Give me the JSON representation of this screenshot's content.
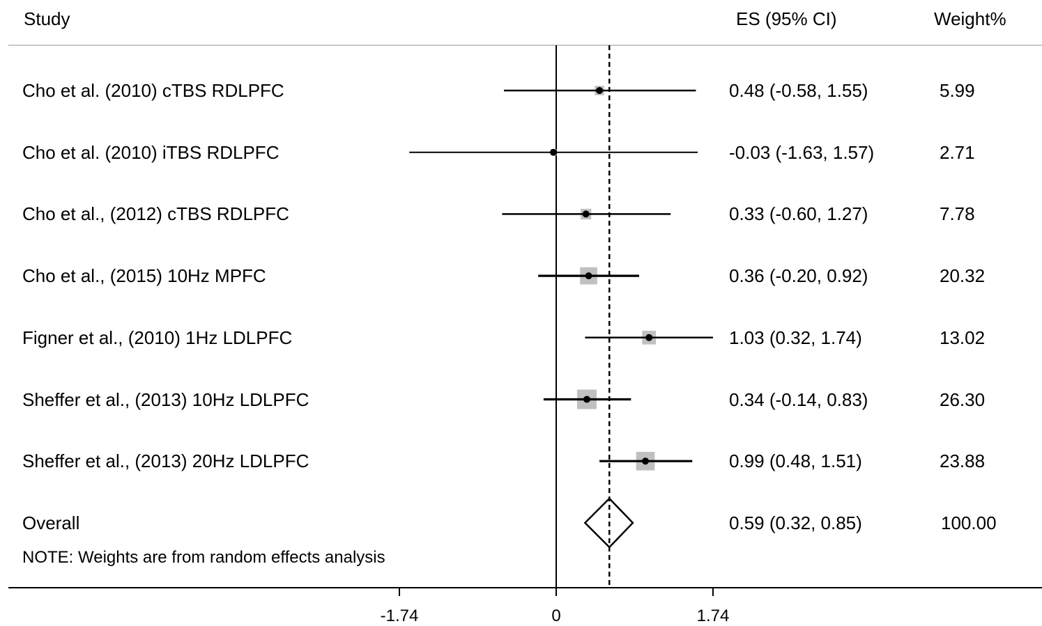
{
  "chart_data": {
    "type": "forest",
    "columns": {
      "study": "Study",
      "es": "ES (95% CI)",
      "weight": "Weight%"
    },
    "studies": [
      {
        "label": "Cho et al. (2010) cTBS RDLPFC",
        "es": 0.48,
        "lo": -0.58,
        "hi": 1.55,
        "es_text": "0.48 (-0.58, 1.55)",
        "weight": 5.99,
        "weight_text": "5.99"
      },
      {
        "label": "Cho et al. (2010) iTBS RDLPFC",
        "es": -0.03,
        "lo": -1.63,
        "hi": 1.57,
        "es_text": "-0.03 (-1.63, 1.57)",
        "weight": 2.71,
        "weight_text": "2.71"
      },
      {
        "label": "Cho et al., (2012) cTBS RDLPFC",
        "es": 0.33,
        "lo": -0.6,
        "hi": 1.27,
        "es_text": "0.33 (-0.60, 1.27)",
        "weight": 7.78,
        "weight_text": "7.78"
      },
      {
        "label": "Cho et al., (2015) 10Hz MPFC",
        "es": 0.36,
        "lo": -0.2,
        "hi": 0.92,
        "es_text": "0.36 (-0.20, 0.92)",
        "weight": 20.32,
        "weight_text": "20.32"
      },
      {
        "label": "Figner et al., (2010) 1Hz LDLPFC",
        "es": 1.03,
        "lo": 0.32,
        "hi": 1.74,
        "es_text": "1.03 (0.32, 1.74)",
        "weight": 13.02,
        "weight_text": "13.02"
      },
      {
        "label": "Sheffer et al., (2013) 10Hz LDLPFC",
        "es": 0.34,
        "lo": -0.14,
        "hi": 0.83,
        "es_text": "0.34 (-0.14, 0.83)",
        "weight": 26.3,
        "weight_text": "26.30"
      },
      {
        "label": "Sheffer et al., (2013) 20Hz LDLPFC",
        "es": 0.99,
        "lo": 0.48,
        "hi": 1.51,
        "es_text": "0.99 (0.48, 1.51)",
        "weight": 23.88,
        "weight_text": "23.88"
      }
    ],
    "overall": {
      "label": "Overall",
      "es": 0.59,
      "lo": 0.32,
      "hi": 0.85,
      "es_text": "0.59 (0.32, 0.85)",
      "weight_text": "100.00"
    },
    "note": "NOTE: Weights are from random effects analysis",
    "x_ticks": [
      -1.74,
      0,
      1.74
    ],
    "x_tick_labels": [
      "-1.74",
      "0",
      "1.74"
    ],
    "colors": {
      "box": "#c0c0c0",
      "line": "#000000"
    }
  }
}
